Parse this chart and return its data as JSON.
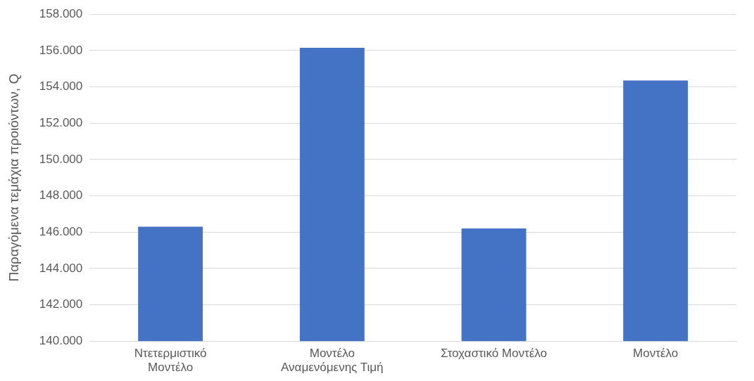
{
  "chart_data": {
    "type": "bar",
    "ylabel": "Παραγόμενα τεμάχια προιόντων, Q",
    "categories": [
      "Ντετερμιστικό Μοντέλο",
      "Μοντέλο Αναμενόμενης Τιμή",
      "Στοχαστικό Μοντέλο",
      "Μοντέλο"
    ],
    "values": [
      146300,
      156150,
      146200,
      154350
    ],
    "color": "#4472c4",
    "ylim": [
      140000,
      158000
    ],
    "yticks": [
      {
        "value": 140000,
        "label": "140.000"
      },
      {
        "value": 142000,
        "label": "142.000"
      },
      {
        "value": 144000,
        "label": "144.000"
      },
      {
        "value": 146000,
        "label": "146.000"
      },
      {
        "value": 148000,
        "label": "148.000"
      },
      {
        "value": 150000,
        "label": "150.000"
      },
      {
        "value": 152000,
        "label": "152.000"
      },
      {
        "value": 154000,
        "label": "154.000"
      },
      {
        "value": 156000,
        "label": "156.000"
      },
      {
        "value": 158000,
        "label": "158.000"
      }
    ],
    "grid": "y",
    "legend": false
  }
}
